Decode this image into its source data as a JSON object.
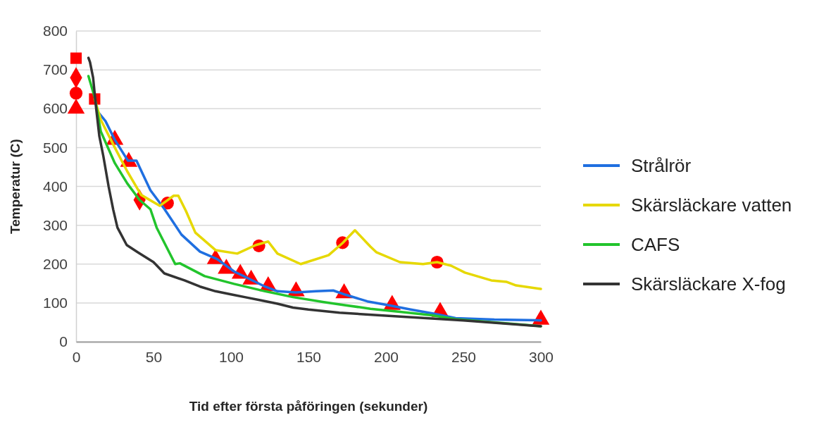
{
  "chart_data": {
    "type": "line",
    "xlabel": "Tid efter första påföringen (sekunder)",
    "ylabel": "Temperatur (C)",
    "xlim": [
      0,
      300
    ],
    "xticks": [
      0,
      50,
      100,
      150,
      200,
      250,
      300
    ],
    "ylim": [
      0,
      800
    ],
    "yticks": [
      0,
      100,
      200,
      300,
      400,
      500,
      600,
      700,
      800
    ],
    "grid": "y",
    "legend": "right",
    "line_style": "solid",
    "series": [
      {
        "name": "Strålrör",
        "color": "#1f6fe0",
        "x": [
          14.5,
          19,
          25,
          33.5,
          39,
          48,
          57,
          68,
          80,
          91,
          102,
          122,
          130,
          142,
          155,
          166,
          174,
          188,
          202,
          216,
          230,
          245,
          270,
          300
        ],
        "values": [
          590,
          568,
          520,
          466,
          466,
          390,
          342,
          276,
          232,
          213,
          181,
          142,
          130,
          127,
          130,
          132,
          121,
          104,
          94,
          83,
          73,
          61,
          57,
          55
        ]
      },
      {
        "name": "Skärsläckare vatten",
        "color": "#e6d800",
        "x": [
          12,
          16,
          25,
          33,
          42,
          54,
          63,
          66,
          71,
          77,
          90,
          104,
          116,
          124,
          130,
          145,
          163,
          172,
          180,
          190,
          194,
          209,
          224,
          233,
          242,
          245,
          251,
          268,
          278,
          284,
          300
        ],
        "values": [
          625,
          571,
          500,
          439,
          378,
          350,
          376,
          376,
          336,
          281,
          236,
          227,
          249,
          258,
          227,
          200,
          223,
          254,
          287,
          245,
          230,
          205,
          200,
          205,
          196,
          190,
          178,
          158,
          154,
          145,
          136
        ]
      },
      {
        "name": "CAFS",
        "color": "#22c42c",
        "x": [
          8,
          12,
          16,
          25,
          33,
          41,
          48,
          52,
          64,
          67,
          83,
          102,
          122,
          140,
          160,
          174,
          190,
          209,
          230,
          245,
          270,
          300
        ],
        "values": [
          684,
          630,
          541,
          460,
          408,
          365,
          341,
          294,
          200,
          202,
          169,
          149,
          130,
          115,
          102,
          94,
          85,
          77,
          68,
          58,
          50,
          40
        ]
      },
      {
        "name": "Skärsläckare X-fog",
        "color": "#333333",
        "x": [
          8,
          9,
          11,
          13,
          15,
          17.6,
          21,
          24,
          26.7,
          32.7,
          40,
          50,
          57,
          70,
          80,
          90,
          100,
          110,
          120,
          130,
          140,
          150,
          170,
          200,
          250,
          300
        ],
        "values": [
          731,
          720,
          680,
          600,
          530,
          478,
          400,
          340,
          294,
          249,
          230,
          205,
          176,
          158,
          142,
          130,
          122,
          114,
          106,
          98,
          88,
          83,
          75,
          67,
          55,
          40
        ]
      },
      {
        "type": "scatter",
        "marker": "triangle",
        "color": "#ff0000",
        "x": [
          0,
          25,
          34,
          90,
          97,
          106,
          113,
          124,
          142,
          173,
          204,
          235,
          300
        ],
        "values": [
          600,
          520,
          463,
          213,
          188,
          175,
          160,
          143,
          130,
          125,
          95,
          77,
          57
        ]
      },
      {
        "type": "scatter",
        "marker": "circle",
        "color": "#ff0000",
        "x": [
          0,
          59,
          118,
          172,
          233
        ],
        "values": [
          640,
          357,
          247,
          255,
          205
        ]
      },
      {
        "type": "scatter",
        "marker": "diamond",
        "color": "#ff0000",
        "x": [
          0,
          41
        ],
        "values": [
          680,
          365
        ]
      },
      {
        "type": "scatter",
        "marker": "square",
        "color": "#ff0000",
        "x": [
          0,
          12
        ],
        "values": [
          730,
          625
        ]
      }
    ]
  }
}
